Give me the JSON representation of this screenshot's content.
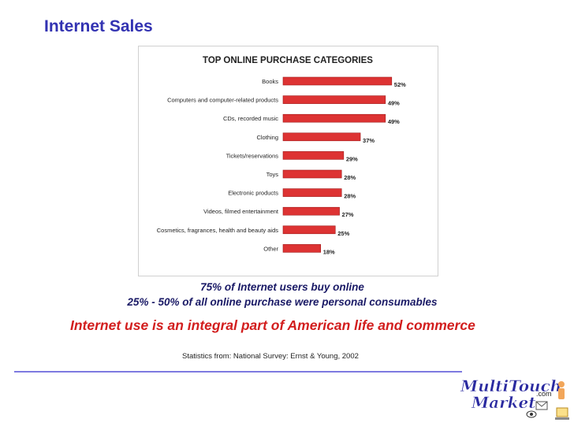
{
  "slide": {
    "title": "Internet Sales",
    "stat_line_1": "75% of Internet users buy online",
    "stat_line_2": "25% - 50% of all online purchase were personal consumables",
    "headline": "Internet use is an integral part of American life and commerce",
    "source": "Statistics from: National Survey:  Ernst & Young, 2002"
  },
  "logo": {
    "line1": "MultiTouch",
    "line2": "Market",
    "suffix": ".com"
  },
  "colors": {
    "title": "#3333b2",
    "bar": "#dd3333",
    "headline": "#d21e1e",
    "divider": "#7d7ae0"
  },
  "chart_data": {
    "type": "bar",
    "orientation": "horizontal",
    "title": "TOP ONLINE PURCHASE CATEGORIES",
    "categories": [
      "Books",
      "Computers and computer-related products",
      "CDs, recorded music",
      "Clothing",
      "Tickets/reservations",
      "Toys",
      "Electronic products",
      "Videos, filmed entertainment",
      "Cosmetics, fragrances, health and beauty aids",
      "Other"
    ],
    "values": [
      52,
      49,
      49,
      37,
      29,
      28,
      28,
      27,
      25,
      18
    ],
    "value_labels": [
      "52%",
      "49%",
      "49%",
      "37%",
      "29%",
      "28%",
      "28%",
      "27%",
      "25%",
      "18%"
    ],
    "xlim": [
      0,
      60
    ],
    "grid": false,
    "legend": "none"
  }
}
